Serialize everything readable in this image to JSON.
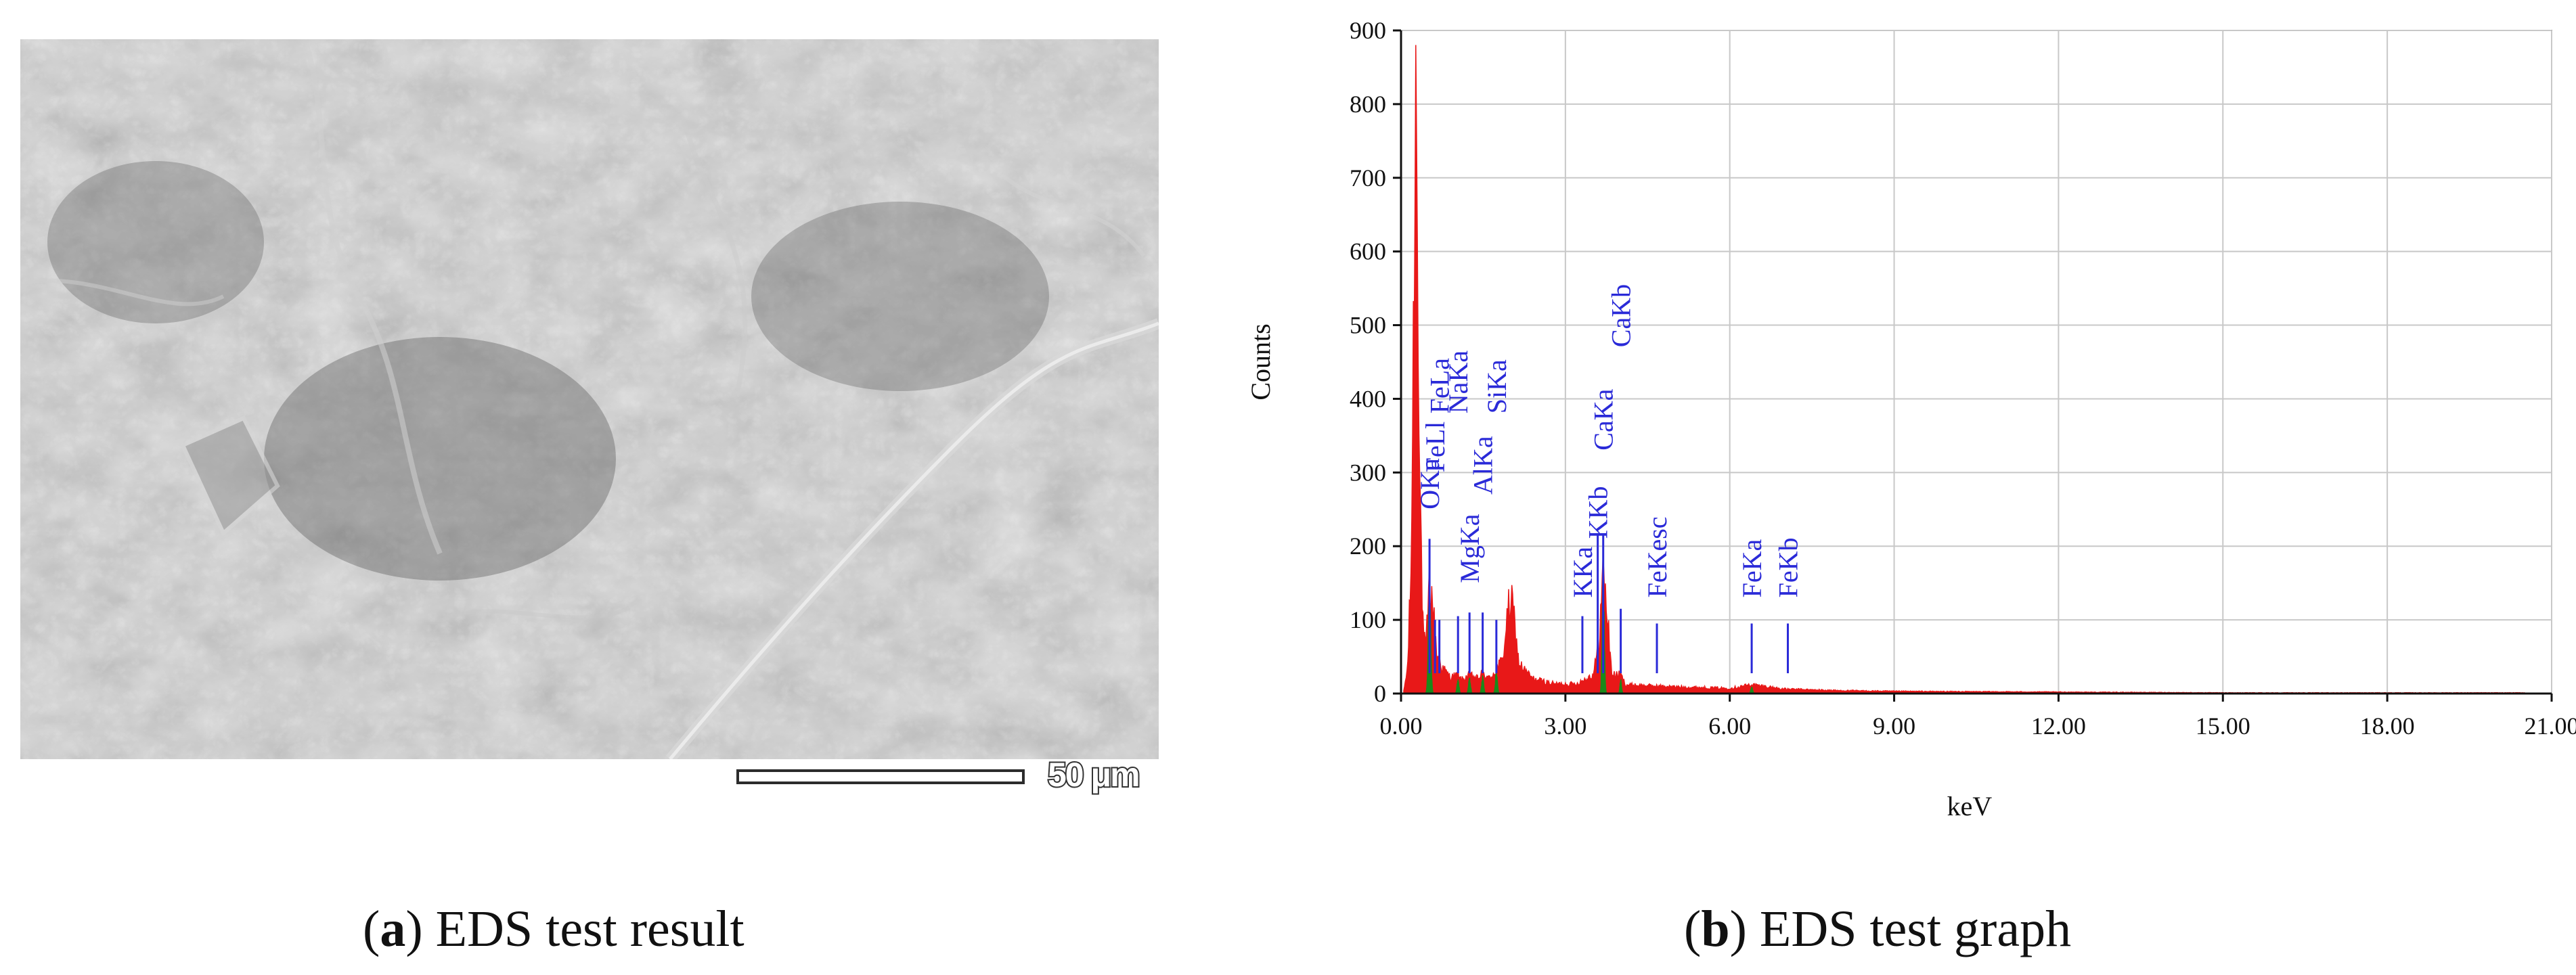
{
  "captions": {
    "a": {
      "letter": "a",
      "text": "EDS test result"
    },
    "b": {
      "letter": "b",
      "text": "EDS test graph"
    }
  },
  "sem_image": {
    "scale_bar_label": "50 μm"
  },
  "colors": {
    "spectrum": "#e81818",
    "highlight": "#1a8a1a",
    "markers": "#2a2ad8",
    "grid": "#c8c8c8"
  },
  "chart_data": {
    "type": "area",
    "xlabel": "keV",
    "ylabel": "Counts",
    "xlim": [
      0,
      21
    ],
    "ylim": [
      0,
      900
    ],
    "xticks": [
      0,
      3,
      6,
      9,
      12,
      15,
      18,
      21
    ],
    "xtick_labels": [
      "0.00",
      "3.00",
      "6.00",
      "9.00",
      "12.00",
      "15.00",
      "18.00",
      "21.00"
    ],
    "yticks": [
      0,
      100,
      200,
      300,
      400,
      500,
      600,
      700,
      800,
      900
    ],
    "ytick_labels": [
      "0",
      "100",
      "200",
      "300",
      "400",
      "500",
      "600",
      "700",
      "800",
      "900"
    ],
    "grid": true,
    "spectrum": [
      {
        "x": 0.05,
        "y": 3
      },
      {
        "x": 0.12,
        "y": 35
      },
      {
        "x": 0.18,
        "y": 160
      },
      {
        "x": 0.22,
        "y": 420
      },
      {
        "x": 0.27,
        "y": 835
      },
      {
        "x": 0.3,
        "y": 720
      },
      {
        "x": 0.34,
        "y": 300
      },
      {
        "x": 0.4,
        "y": 90
      },
      {
        "x": 0.45,
        "y": 55
      },
      {
        "x": 0.52,
        "y": 150
      },
      {
        "x": 0.58,
        "y": 120
      },
      {
        "x": 0.65,
        "y": 55
      },
      {
        "x": 0.75,
        "y": 35
      },
      {
        "x": 0.9,
        "y": 22
      },
      {
        "x": 1.04,
        "y": 25
      },
      {
        "x": 1.1,
        "y": 18
      },
      {
        "x": 1.25,
        "y": 25
      },
      {
        "x": 1.4,
        "y": 20
      },
      {
        "x": 1.49,
        "y": 28
      },
      {
        "x": 1.6,
        "y": 20
      },
      {
        "x": 1.74,
        "y": 32
      },
      {
        "x": 1.85,
        "y": 45
      },
      {
        "x": 1.95,
        "y": 110
      },
      {
        "x": 2.0,
        "y": 125
      },
      {
        "x": 2.05,
        "y": 110
      },
      {
        "x": 2.15,
        "y": 40
      },
      {
        "x": 2.4,
        "y": 20
      },
      {
        "x": 2.8,
        "y": 13
      },
      {
        "x": 3.2,
        "y": 13
      },
      {
        "x": 3.5,
        "y": 25
      },
      {
        "x": 3.6,
        "y": 60
      },
      {
        "x": 3.69,
        "y": 165
      },
      {
        "x": 3.75,
        "y": 120
      },
      {
        "x": 3.85,
        "y": 25
      },
      {
        "x": 4.01,
        "y": 25
      },
      {
        "x": 4.1,
        "y": 12
      },
      {
        "x": 5.0,
        "y": 9
      },
      {
        "x": 6.0,
        "y": 7
      },
      {
        "x": 6.4,
        "y": 12
      },
      {
        "x": 7.0,
        "y": 6
      },
      {
        "x": 8.0,
        "y": 4
      },
      {
        "x": 9.0,
        "y": 3
      },
      {
        "x": 12.0,
        "y": 2
      },
      {
        "x": 15.0,
        "y": 1
      },
      {
        "x": 18.0,
        "y": 1
      },
      {
        "x": 20.5,
        "y": 1
      }
    ],
    "highlighted_peaks": [
      {
        "center": 0.52,
        "height": 140,
        "width": 0.07
      },
      {
        "center": 1.04,
        "height": 18,
        "width": 0.06
      },
      {
        "center": 1.25,
        "height": 20,
        "width": 0.06
      },
      {
        "center": 1.49,
        "height": 22,
        "width": 0.06
      },
      {
        "center": 1.74,
        "height": 28,
        "width": 0.06
      },
      {
        "center": 3.69,
        "height": 165,
        "width": 0.06
      },
      {
        "center": 4.01,
        "height": 18,
        "width": 0.05
      },
      {
        "center": 6.4,
        "height": 8,
        "width": 0.06
      }
    ],
    "element_markers": [
      {
        "label": "OKa",
        "x": 0.52,
        "y_top": 210,
        "label_y": 250
      },
      {
        "label": "FeLl",
        "x": 0.62,
        "y_top": 100,
        "label_y": 300
      },
      {
        "label": "FeLa",
        "x": 0.7,
        "y_top": 100,
        "label_y": 380
      },
      {
        "label": "NaKa",
        "x": 1.04,
        "y_top": 105,
        "label_y": 380
      },
      {
        "label": "MgKa",
        "x": 1.25,
        "y_top": 110,
        "label_y": 150
      },
      {
        "label": "AlKa",
        "x": 1.49,
        "y_top": 110,
        "label_y": 270
      },
      {
        "label": "SiKa",
        "x": 1.74,
        "y_top": 100,
        "label_y": 380
      },
      {
        "label": "KKa",
        "x": 3.31,
        "y_top": 105,
        "label_y": 130
      },
      {
        "label": "KKb",
        "x": 3.59,
        "y_top": 215,
        "label_y": 210
      },
      {
        "label": "CaKa",
        "x": 3.69,
        "y_top": 215,
        "label_y": 330
      },
      {
        "label": "CaKb",
        "x": 4.01,
        "y_top": 115,
        "label_y": 470
      },
      {
        "label": "FeKesc",
        "x": 4.67,
        "y_top": 95,
        "label_y": 130
      },
      {
        "label": "FeKa",
        "x": 6.4,
        "y_top": 95,
        "label_y": 130
      },
      {
        "label": "FeKb",
        "x": 7.06,
        "y_top": 95,
        "label_y": 130
      }
    ]
  }
}
